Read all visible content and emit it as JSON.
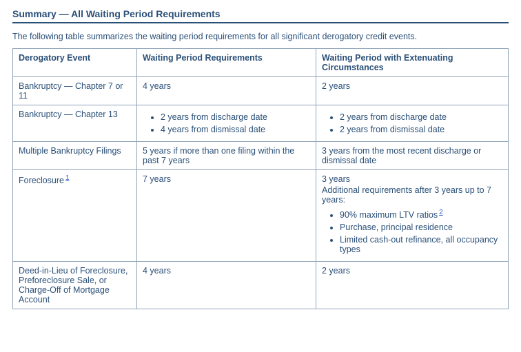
{
  "heading": "Summary — All Waiting Period Requirements",
  "intro": "The following table summarizes the waiting period requirements for all significant derogatory credit events.",
  "columns": {
    "a": "Derogatory Event",
    "b": "Waiting Period Requirements",
    "c": "Waiting Period with Extenuating Circumstances"
  },
  "rows": {
    "r1": {
      "event": "Bankruptcy — Chapter 7 or 11",
      "wait": "4 years",
      "ext": "2 years"
    },
    "r2": {
      "event": "Bankruptcy — Chapter 13",
      "wait_items": {
        "i1": "2 years from discharge date",
        "i2": "4 years from dismissal date"
      },
      "ext_items": {
        "i1": "2 years from discharge date",
        "i2": "2 years from dismissal date"
      }
    },
    "r3": {
      "event": "Multiple Bankruptcy Filings",
      "wait": "5 years if more than one filing within the past 7 years",
      "ext": "3 years from the most recent discharge or dismissal date"
    },
    "r4": {
      "event": "Foreclosure",
      "event_ref": "1",
      "wait": "7 years",
      "ext_line1": "3 years",
      "ext_line2": "Additional requirements after 3 years up to 7 years:",
      "ext_items": {
        "i1": "90% maximum LTV ratios",
        "i1_ref": "2",
        "i2": "Purchase, principal residence",
        "i3": "Limited cash-out refinance, all occupancy types"
      }
    },
    "r5": {
      "event": "Deed-in-Lieu of Foreclosure, Preforeclosure Sale, or Charge-Off of Mortgage Account",
      "wait": "4 years",
      "ext": "2 years"
    }
  },
  "colors": {
    "text": "#2b5078",
    "border": "#8fa3b8",
    "link": "#3160c2",
    "background": "#ffffff"
  }
}
